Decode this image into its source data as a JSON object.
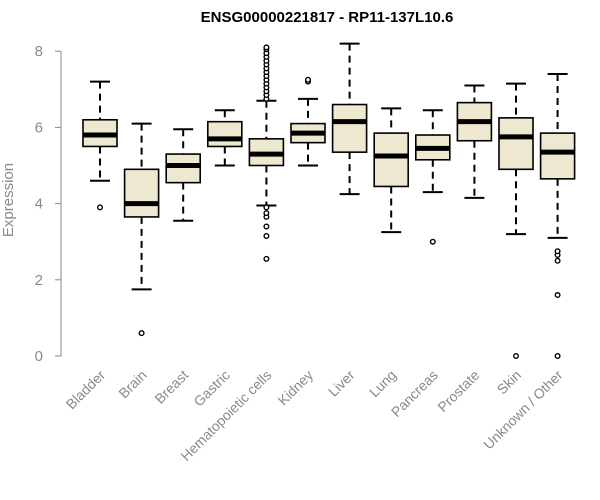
{
  "chart_data": {
    "type": "boxplot",
    "title": "ENSG00000221817 - RP11-137L10.6",
    "ylabel": "Expression",
    "ylim": [
      0,
      8.2
    ],
    "yticks": [
      0,
      2,
      4,
      6,
      8
    ],
    "grid": false,
    "colors": {
      "box_fill": "#efe8d0",
      "stroke": "#000000",
      "axis": "#8a8a8a"
    },
    "categories": [
      "Bladder",
      "Brain",
      "Breast",
      "Gastric",
      "Hematopoietic cells",
      "Kidney",
      "Liver",
      "Lung",
      "Pancreas",
      "Prostate",
      "Skin",
      "Unknown / Other"
    ],
    "boxes": [
      {
        "name": "Bladder",
        "whisker_low": 4.6,
        "q1": 5.5,
        "median": 5.8,
        "q3": 6.2,
        "whisker_high": 7.2,
        "outliers": [
          3.9
        ]
      },
      {
        "name": "Brain",
        "whisker_low": 1.75,
        "q1": 3.65,
        "median": 4.0,
        "q3": 4.9,
        "whisker_high": 6.1,
        "outliers": [
          0.6
        ]
      },
      {
        "name": "Breast",
        "whisker_low": 3.55,
        "q1": 4.55,
        "median": 5.0,
        "q3": 5.3,
        "whisker_high": 5.95,
        "outliers": []
      },
      {
        "name": "Gastric",
        "whisker_low": 5.0,
        "q1": 5.5,
        "median": 5.7,
        "q3": 6.15,
        "whisker_high": 6.45,
        "outliers": []
      },
      {
        "name": "Hematopoietic cells",
        "whisker_low": 3.95,
        "q1": 5.0,
        "median": 5.3,
        "q3": 5.7,
        "whisker_high": 6.7,
        "outliers": [
          2.55,
          3.15,
          3.4,
          3.65,
          3.75,
          3.9,
          6.75,
          6.85,
          6.95,
          7.05,
          7.15,
          7.25,
          7.35,
          7.45,
          7.55,
          7.65,
          7.75,
          7.85,
          7.95,
          8.05,
          8.1
        ]
      },
      {
        "name": "Kidney",
        "whisker_low": 5.0,
        "q1": 5.6,
        "median": 5.85,
        "q3": 6.1,
        "whisker_high": 6.75,
        "outliers": [
          7.2,
          7.25
        ]
      },
      {
        "name": "Liver",
        "whisker_low": 4.25,
        "q1": 5.35,
        "median": 6.15,
        "q3": 6.6,
        "whisker_high": 8.2,
        "outliers": []
      },
      {
        "name": "Lung",
        "whisker_low": 3.25,
        "q1": 4.45,
        "median": 5.25,
        "q3": 5.85,
        "whisker_high": 6.5,
        "outliers": []
      },
      {
        "name": "Pancreas",
        "whisker_low": 4.3,
        "q1": 5.15,
        "median": 5.45,
        "q3": 5.8,
        "whisker_high": 6.45,
        "outliers": [
          3.0
        ]
      },
      {
        "name": "Prostate",
        "whisker_low": 4.15,
        "q1": 5.65,
        "median": 6.15,
        "q3": 6.65,
        "whisker_high": 7.1,
        "outliers": []
      },
      {
        "name": "Skin",
        "whisker_low": 3.2,
        "q1": 4.9,
        "median": 5.75,
        "q3": 6.25,
        "whisker_high": 7.15,
        "outliers": [
          0.0
        ]
      },
      {
        "name": "Unknown / Other",
        "whisker_low": 3.1,
        "q1": 4.65,
        "median": 5.35,
        "q3": 5.85,
        "whisker_high": 7.4,
        "outliers": [
          0.0,
          1.6,
          2.5,
          2.65,
          2.75
        ]
      }
    ]
  }
}
